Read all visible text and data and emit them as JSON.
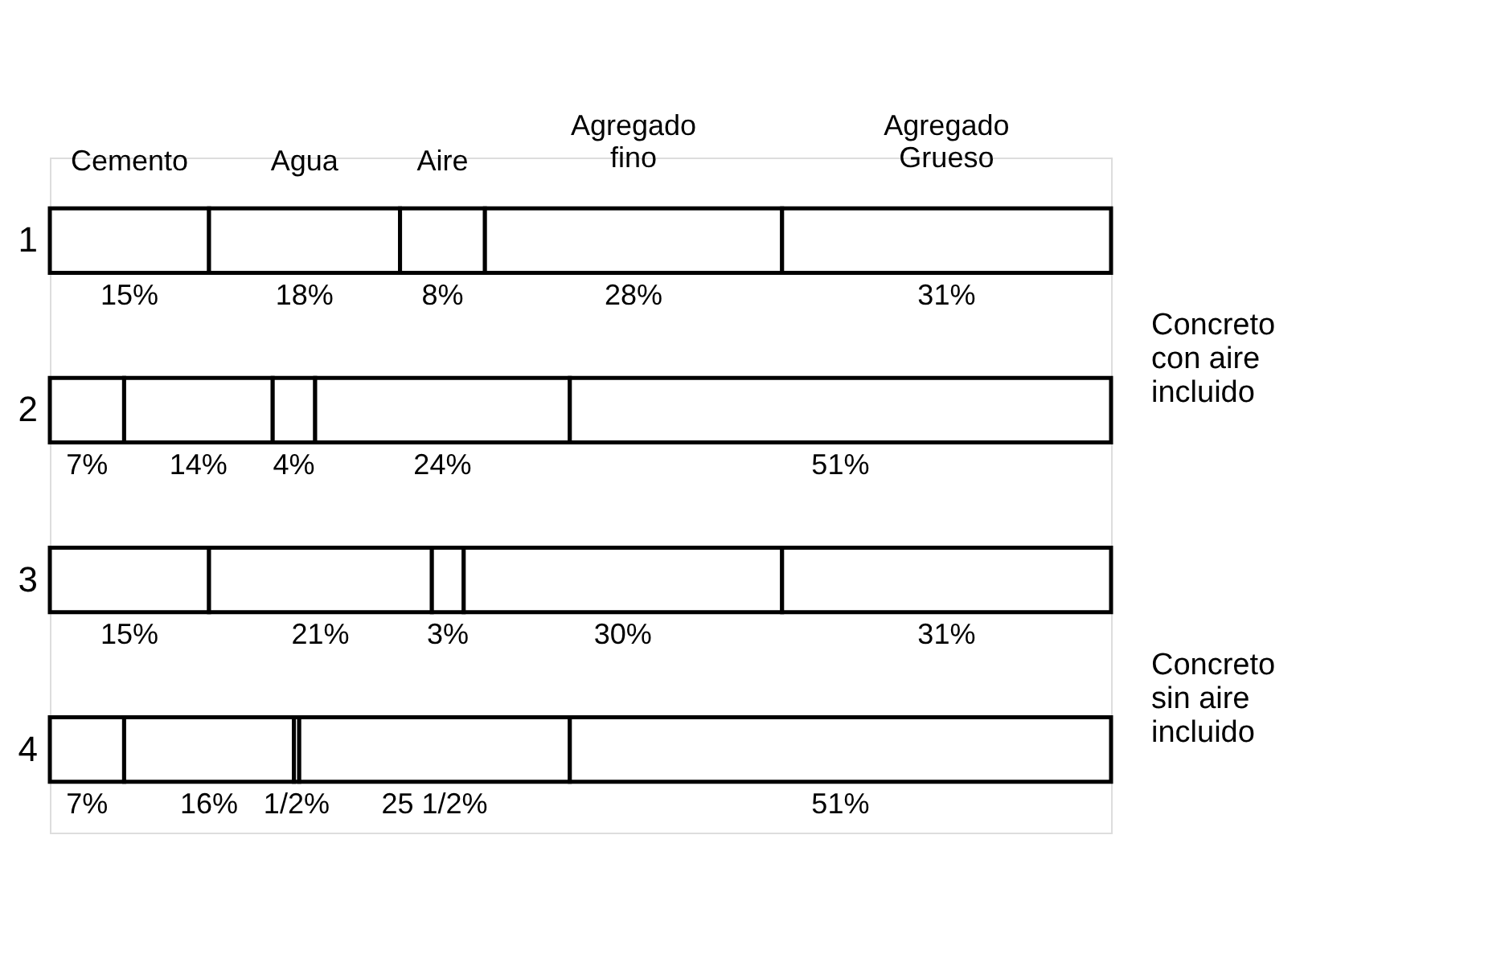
{
  "chart_data": {
    "type": "bar",
    "orientation": "horizontal",
    "stacked": true,
    "categories": [
      "1",
      "2",
      "3",
      "4"
    ],
    "xlim": [
      0,
      100
    ],
    "tick_labels": "y",
    "legend": false,
    "series": [
      {
        "name": "Cemento",
        "color": "#ffffff",
        "values": [
          15,
          7,
          15,
          7
        ],
        "value_labels": [
          "15%",
          "7%",
          "15%",
          "7%"
        ]
      },
      {
        "name": "Agua",
        "color": "#ffffff",
        "values": [
          18,
          14,
          21,
          16
        ],
        "value_labels": [
          "18%",
          "14%",
          "21%",
          "16%"
        ]
      },
      {
        "name": "Aire",
        "color": "#ffffff",
        "values": [
          8,
          4,
          3,
          0.5
        ],
        "value_labels": [
          "8%",
          "4%",
          "3%",
          "1/2%"
        ]
      },
      {
        "name": "Agregado fino",
        "color": "#ffffff",
        "values": [
          28,
          24,
          30,
          25.5
        ],
        "value_labels": [
          "28%",
          "24%",
          "30%",
          "25 1/2%"
        ]
      },
      {
        "name": "Agregado Grueso",
        "color": "#ffffff",
        "values": [
          31,
          51,
          31,
          51
        ],
        "value_labels": [
          "31%",
          "51%",
          "31%",
          "51%"
        ]
      }
    ],
    "annotations": [
      "Concreto con aire incluido",
      "Concreto sin aire incluido"
    ]
  }
}
